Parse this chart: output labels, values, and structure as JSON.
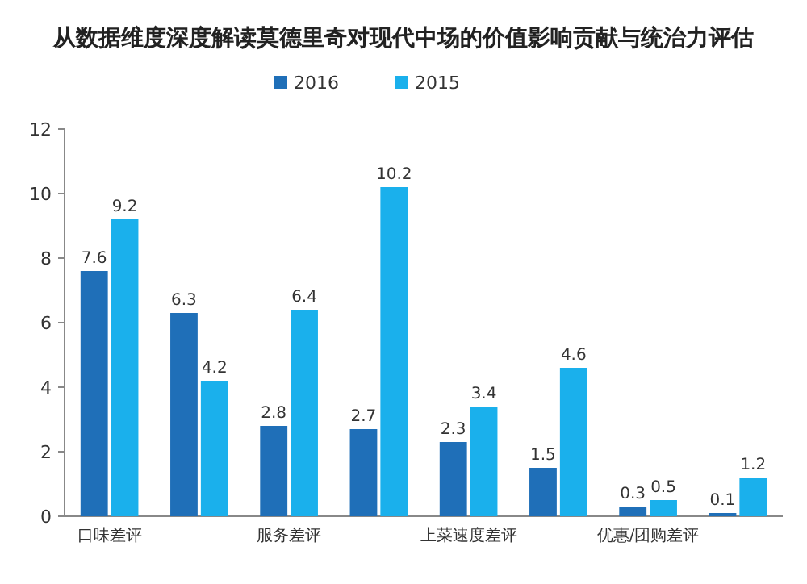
{
  "chart_data": {
    "type": "bar",
    "title": "从数据维度深度解读莫德里奇对现代中场的价值影响贡献与统治力评估",
    "categories": [
      "口味差评",
      null,
      "服务差评",
      null,
      "上菜速度差评",
      null,
      "优惠/团购差评",
      null
    ],
    "series": [
      {
        "name": "2016",
        "color": "#1f6fb8",
        "values": [
          7.6,
          6.3,
          2.8,
          2.7,
          2.3,
          1.5,
          0.3,
          0.1
        ]
      },
      {
        "name": "2015",
        "color": "#1ab0ec",
        "values": [
          9.2,
          4.2,
          6.4,
          10.2,
          3.4,
          4.6,
          0.5,
          1.2
        ]
      }
    ],
    "ylim": [
      0,
      12
    ],
    "yticks": [
      0,
      2,
      4,
      6,
      8,
      10,
      12
    ],
    "data_labels": true,
    "legend": "top",
    "grid": false
  }
}
